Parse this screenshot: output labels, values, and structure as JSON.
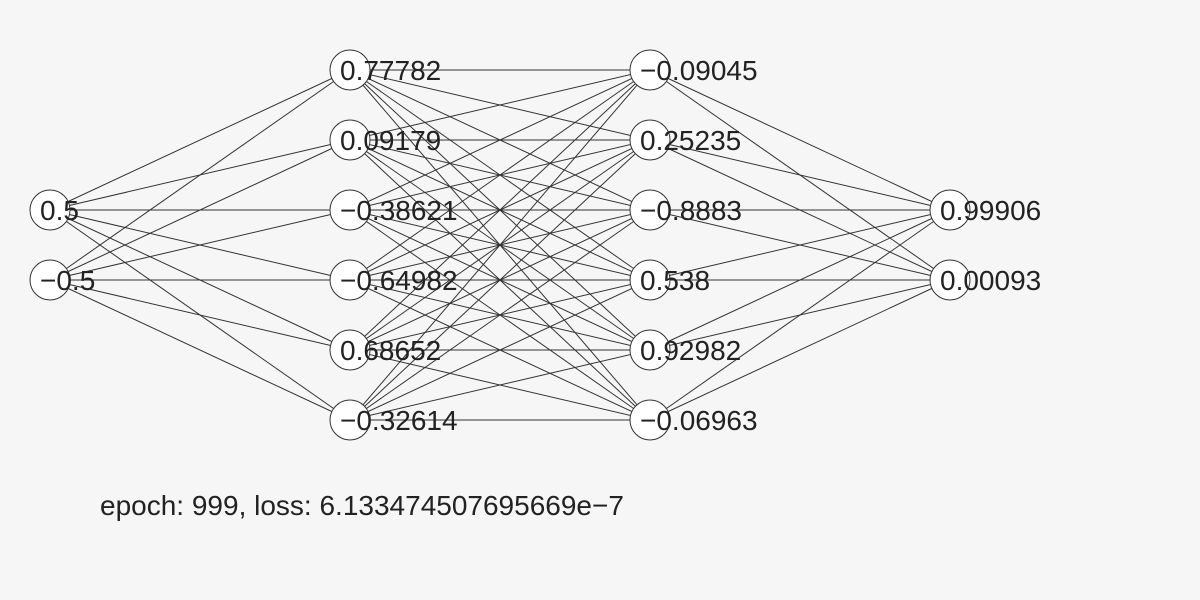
{
  "network": {
    "layers": [
      {
        "values": [
          "0.5",
          "−0.5"
        ]
      },
      {
        "values": [
          "0.77782",
          "0.09179",
          "−0.38621",
          "−0.64982",
          "0.68652",
          "−0.32614"
        ]
      },
      {
        "values": [
          "−0.09045",
          "0.25235",
          "−0.8883",
          "0.538",
          "0.92982",
          "−0.06963"
        ]
      },
      {
        "values": [
          "0.99906",
          "0.00093"
        ]
      }
    ]
  },
  "status": {
    "text": "epoch: 999, loss: 6.133474507695669e−7"
  },
  "colors": {
    "background": "#f6f6f6",
    "edge": "#333333",
    "node_fill": "#ffffff",
    "text": "#222222"
  }
}
